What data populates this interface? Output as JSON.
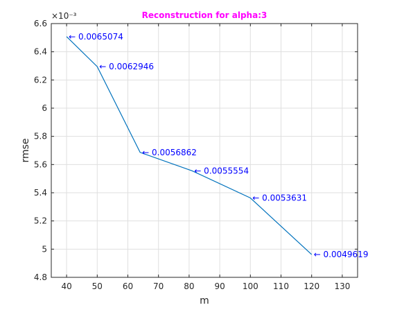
{
  "chart_data": {
    "type": "line",
    "title": "Reconstruction for alpha:3",
    "xlabel": "m",
    "ylabel": "rmse",
    "y_exponent_label": "×10⁻³",
    "xlim": [
      35,
      135
    ],
    "ylim": [
      0.0048,
      0.0066
    ],
    "x_ticks": [
      40,
      50,
      60,
      70,
      80,
      90,
      100,
      110,
      120,
      130
    ],
    "x_tick_labels": [
      "40",
      "50",
      "60",
      "70",
      "80",
      "90",
      "100",
      "110",
      "120",
      "130"
    ],
    "y_ticks": [
      0.0048,
      0.005,
      0.0052,
      0.0054,
      0.0056,
      0.0058,
      0.006,
      0.0062,
      0.0064,
      0.0066
    ],
    "y_tick_labels": [
      "4.8",
      "5",
      "5.2",
      "5.4",
      "5.6",
      "5.8",
      "6",
      "6.2",
      "6.4",
      "6.6"
    ],
    "grid": true,
    "series": [
      {
        "x": [
          40,
          50,
          64,
          81,
          100,
          120
        ],
        "y": [
          0.0065074,
          0.0062946,
          0.0056862,
          0.0055554,
          0.0053631,
          0.0049619
        ]
      }
    ],
    "annotations": [
      "← 0.0065074",
      "← 0.0062946",
      "← 0.0056862",
      "← 0.0055554",
      "← 0.0053631",
      "← 0.0049619"
    ]
  },
  "colors": {
    "title": "#ff00ff",
    "line": "#0072bd",
    "annotation": "#0000ff",
    "axis": "#262626",
    "grid": "#dfdfdf"
  }
}
